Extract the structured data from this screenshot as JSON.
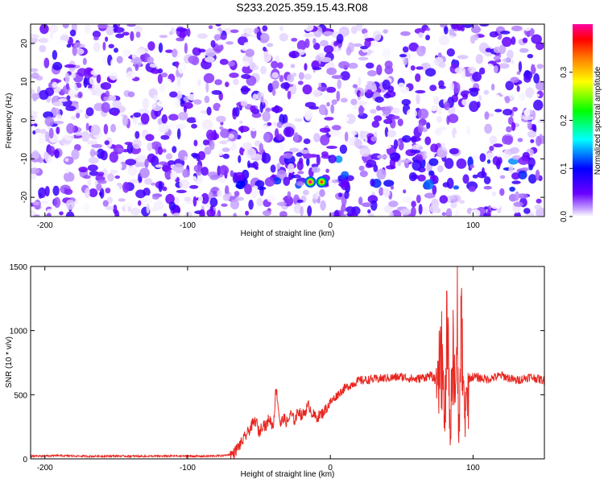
{
  "figure": {
    "title": "S233.2025.359.15.43.R08"
  },
  "chart_data": [
    {
      "type": "heatmap",
      "title": "S233.2025.359.15.43.R08",
      "xlabel": "Height of straight line (km)",
      "ylabel": "Frequency (Hz)",
      "xlim": [
        -210,
        150
      ],
      "ylim": [
        -25,
        25
      ],
      "xticks": [
        -200,
        -100,
        0,
        100
      ],
      "yticks": [
        -20,
        -10,
        0,
        10,
        20
      ],
      "colorbar": {
        "label": "Normalized spectral amplitude",
        "range": [
          0.0,
          0.4
        ],
        "ticks": [
          0.0,
          0.1,
          0.2,
          0.3
        ],
        "colors": [
          "#ffffff",
          "#6a00ff",
          "#0000ff",
          "#00ffff",
          "#00ff00",
          "#ffff00",
          "#ff8000",
          "#ff0000",
          "#ff00a0"
        ]
      },
      "background_amplitude": [
        0.0,
        0.08
      ],
      "band_frequency_hz": [
        -18,
        -10
      ],
      "hotspots": [
        {
          "x": -14,
          "y": -16,
          "amplitude": 0.4
        },
        {
          "x": -6,
          "y": -16,
          "amplitude": 0.35
        }
      ]
    },
    {
      "type": "line",
      "xlabel": "Height of straight line (km)",
      "ylabel": "SNR (10 * v/v)",
      "xlim": [
        -210,
        150
      ],
      "ylim": [
        0,
        1500
      ],
      "xticks": [
        -200,
        -100,
        0,
        100
      ],
      "yticks": [
        0,
        500,
        1000,
        1500
      ],
      "color": "#e8261f",
      "series": [
        {
          "x": [
            -210,
            -190,
            -170,
            -150,
            -130,
            -110,
            -90,
            -75,
            -68,
            -62,
            -58,
            -55,
            -52,
            -50,
            -47,
            -45,
            -43,
            -40,
            -38,
            -35,
            -33,
            -30,
            -28,
            -25,
            -22,
            -20,
            -15,
            -13,
            -10,
            -5,
            0,
            5,
            10,
            20,
            30,
            40,
            50,
            60,
            70,
            75,
            78,
            80,
            82,
            84,
            86,
            88,
            89,
            90,
            92,
            94,
            96,
            100,
            110,
            120,
            130,
            140,
            150
          ],
          "y": [
            20,
            25,
            20,
            22,
            20,
            22,
            20,
            25,
            40,
            130,
            200,
            260,
            300,
            200,
            280,
            250,
            320,
            250,
            560,
            260,
            320,
            280,
            350,
            300,
            380,
            330,
            420,
            360,
            320,
            360,
            440,
            500,
            550,
            610,
            620,
            630,
            640,
            620,
            650,
            600,
            1100,
            300,
            1300,
            200,
            1200,
            500,
            1500,
            250,
            1380,
            300,
            620,
            640,
            620,
            650,
            610,
            640,
            610
          ]
        }
      ]
    }
  ]
}
